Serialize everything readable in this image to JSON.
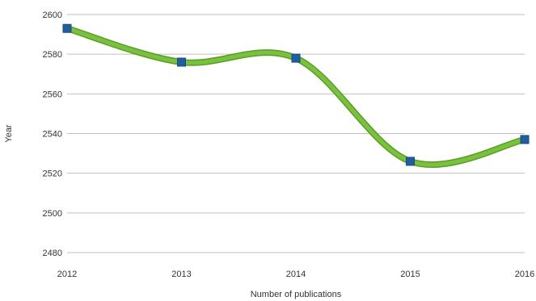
{
  "chart_data": {
    "type": "line",
    "title": "",
    "xlabel": "Number of publications",
    "ylabel": "Year",
    "x": [
      2012,
      2013,
      2014,
      2015,
      2016
    ],
    "x_ticks": [
      "2012",
      "2013",
      "2014",
      "2015",
      "2016"
    ],
    "xlim": [
      2012,
      2016
    ],
    "ylim": [
      2480,
      2600
    ],
    "y_ticks": [
      "2480",
      "2500",
      "2520",
      "2540",
      "2560",
      "2580",
      "2600"
    ],
    "series": [
      {
        "values": [
          2593,
          2576,
          2578,
          2526,
          2537
        ]
      }
    ],
    "smooth": true,
    "grid": "horizontal",
    "colors": {
      "line": "#7ac143",
      "line_edge": "#5a9e1f",
      "marker": "#1f5fa0",
      "grid": "#bfbfbf"
    }
  }
}
